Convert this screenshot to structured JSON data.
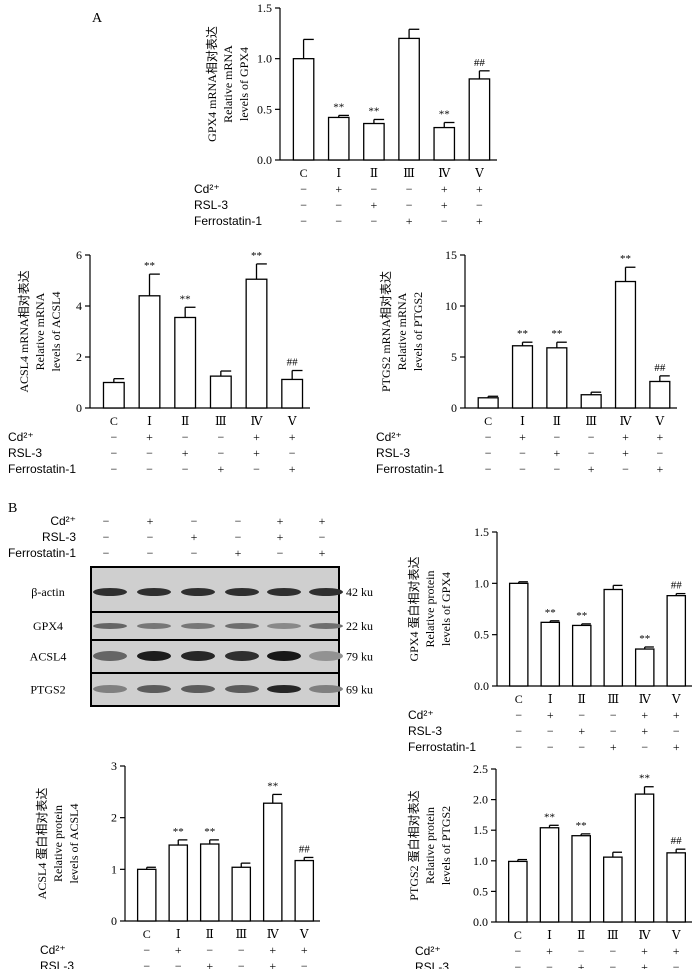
{
  "panel_labels": {
    "a": "A",
    "b": "B"
  },
  "treatment_rows": [
    "Cd²⁺",
    "RSL-3",
    "Ferrostatin-1"
  ],
  "groups": [
    "C",
    "Ⅰ",
    "Ⅱ",
    "Ⅲ",
    "Ⅳ",
    "Ⅴ"
  ],
  "signs": [
    [
      "−",
      "+",
      "−",
      "−",
      "+",
      "+"
    ],
    [
      "−",
      "−",
      "+",
      "−",
      "+",
      "−"
    ],
    [
      "−",
      "−",
      "−",
      "+",
      "−",
      "+"
    ]
  ],
  "blot": {
    "rows": [
      {
        "protein": "β-actin",
        "size": "42 ku"
      },
      {
        "protein": "GPX4",
        "size": "22 ku"
      },
      {
        "protein": "ACSL4",
        "size": "79 ku"
      },
      {
        "protein": "PTGS2",
        "size": "69 ku"
      }
    ]
  },
  "chart_data": [
    {
      "type": "bar",
      "ylabel_lines": [
        "GPX4 mRNA相对表达",
        "Relative mRNA",
        "levels of GPX4"
      ],
      "categories": [
        "C",
        "Ⅰ",
        "Ⅱ",
        "Ⅲ",
        "Ⅳ",
        "Ⅴ"
      ],
      "values": [
        1.0,
        0.42,
        0.36,
        1.2,
        0.32,
        0.8
      ],
      "errors": [
        0.19,
        0.02,
        0.04,
        0.09,
        0.05,
        0.08
      ],
      "annotations": [
        "",
        "**",
        "**",
        "",
        "**",
        "##"
      ],
      "ylim": [
        0,
        1.5
      ],
      "yticks": [
        "0.0",
        "0.5",
        "1.0",
        "1.5"
      ]
    },
    {
      "type": "bar",
      "ylabel_lines": [
        "ACSL4 mRNA相对表达",
        "Relative mRNA",
        "levels of ACSL4"
      ],
      "categories": [
        "C",
        "Ⅰ",
        "Ⅱ",
        "Ⅲ",
        "Ⅳ",
        "Ⅴ"
      ],
      "values": [
        1.0,
        4.4,
        3.55,
        1.25,
        5.05,
        1.12
      ],
      "errors": [
        0.15,
        0.85,
        0.4,
        0.2,
        0.6,
        0.35
      ],
      "annotations": [
        "",
        "**",
        "**",
        "",
        "**",
        "##"
      ],
      "ylim": [
        0,
        6
      ],
      "yticks": [
        "0",
        "2",
        "4",
        "6"
      ]
    },
    {
      "type": "bar",
      "ylabel_lines": [
        "PTGS2 mRNA相对表达",
        "Relative mRNA",
        "levels of PTGS2"
      ],
      "categories": [
        "C",
        "Ⅰ",
        "Ⅱ",
        "Ⅲ",
        "Ⅳ",
        "Ⅴ"
      ],
      "values": [
        1.0,
        6.1,
        5.9,
        1.3,
        12.4,
        2.6
      ],
      "errors": [
        0.15,
        0.35,
        0.55,
        0.25,
        1.4,
        0.55
      ],
      "annotations": [
        "",
        "**",
        "**",
        "",
        "**",
        "##"
      ],
      "ylim": [
        0,
        15
      ],
      "yticks": [
        "0",
        "5",
        "10",
        "15"
      ]
    },
    {
      "type": "bar",
      "ylabel_lines": [
        "GPX4 蛋白相对表达",
        "Relative protein",
        "levels of GPX4"
      ],
      "categories": [
        "C",
        "Ⅰ",
        "Ⅱ",
        "Ⅲ",
        "Ⅳ",
        "Ⅴ"
      ],
      "values": [
        1.0,
        0.62,
        0.59,
        0.94,
        0.36,
        0.88
      ],
      "errors": [
        0.015,
        0.015,
        0.015,
        0.04,
        0.02,
        0.02
      ],
      "annotations": [
        "",
        "**",
        "**",
        "",
        "**",
        "##"
      ],
      "ylim": [
        0,
        1.5
      ],
      "yticks": [
        "0.0",
        "0.5",
        "1.0",
        "1.5"
      ]
    },
    {
      "type": "bar",
      "ylabel_lines": [
        "ACSL4 蛋白相对表达",
        "Relative protein",
        "levels of ACSL4"
      ],
      "categories": [
        "C",
        "Ⅰ",
        "Ⅱ",
        "Ⅲ",
        "Ⅳ",
        "Ⅴ"
      ],
      "values": [
        1.0,
        1.47,
        1.49,
        1.04,
        2.28,
        1.17
      ],
      "errors": [
        0.04,
        0.1,
        0.08,
        0.08,
        0.17,
        0.06
      ],
      "annotations": [
        "",
        "**",
        "**",
        "",
        "**",
        "##"
      ],
      "ylim": [
        0,
        3
      ],
      "yticks": [
        "0",
        "1",
        "2",
        "3"
      ]
    },
    {
      "type": "bar",
      "ylabel_lines": [
        "PTGS2 蛋白相对表达",
        "Relative protein",
        "levels of PTGS2"
      ],
      "categories": [
        "C",
        "Ⅰ",
        "Ⅱ",
        "Ⅲ",
        "Ⅳ",
        "Ⅴ"
      ],
      "values": [
        0.99,
        1.54,
        1.41,
        1.06,
        2.09,
        1.13
      ],
      "errors": [
        0.03,
        0.04,
        0.03,
        0.08,
        0.12,
        0.06
      ],
      "annotations": [
        "",
        "**",
        "**",
        "",
        "**",
        "##"
      ],
      "ylim": [
        0,
        2.5
      ],
      "yticks": [
        "0.0",
        "0.5",
        "1.0",
        "1.5",
        "2.0",
        "2.5"
      ]
    }
  ]
}
